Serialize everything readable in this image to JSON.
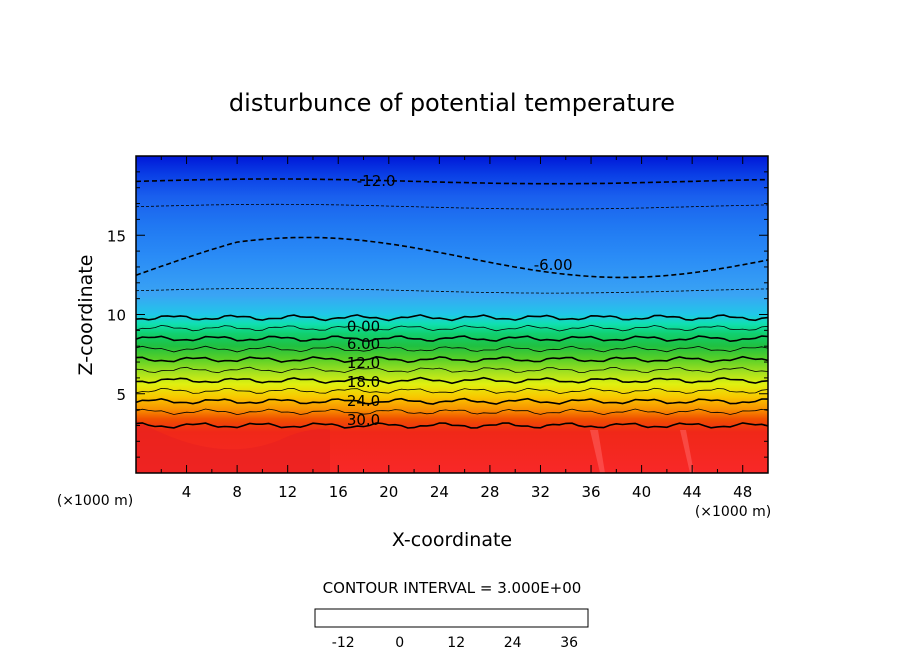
{
  "chart_data": {
    "type": "contour",
    "title": "disturbunce of potential temperature",
    "xlabel": "X-coordinate",
    "ylabel": "Z-coordinate",
    "x_unit": "(×1000 m)",
    "y_unit": "(×1000 m)",
    "xlim": [
      0,
      50
    ],
    "ylim": [
      0,
      20
    ],
    "x_ticks": [
      "4",
      "8",
      "12",
      "16",
      "20",
      "24",
      "28",
      "32",
      "36",
      "40",
      "44",
      "48"
    ],
    "y_ticks": [
      "5",
      "10",
      "15"
    ],
    "contour_interval_text": "CONTOUR INTERVAL = 3.000E+00",
    "contour_interval": 3.0,
    "contour_labels": [
      {
        "text": "-12.0",
        "value": -12,
        "x": 19,
        "z": 18.5
      },
      {
        "text": "-6.00",
        "value": -6,
        "x": 33,
        "z": 13.2
      },
      {
        "text": "0.00",
        "value": 0,
        "x": 18,
        "z": 9.3
      },
      {
        "text": "6.00",
        "value": 6,
        "x": 18,
        "z": 8.2
      },
      {
        "text": "12.0",
        "value": 12,
        "x": 18,
        "z": 7.0
      },
      {
        "text": "18.0",
        "value": 18,
        "x": 18,
        "z": 5.8
      },
      {
        "text": "24.0",
        "value": 24,
        "x": 18,
        "z": 4.6
      },
      {
        "text": "30.0",
        "value": 30,
        "x": 18,
        "z": 3.4
      }
    ],
    "colorbar": {
      "range": [
        -18,
        40
      ],
      "ticks": [
        "-12",
        "0",
        "12",
        "24",
        "36"
      ],
      "tick_values": [
        -12,
        0,
        12,
        24,
        36
      ]
    },
    "grid": false
  }
}
